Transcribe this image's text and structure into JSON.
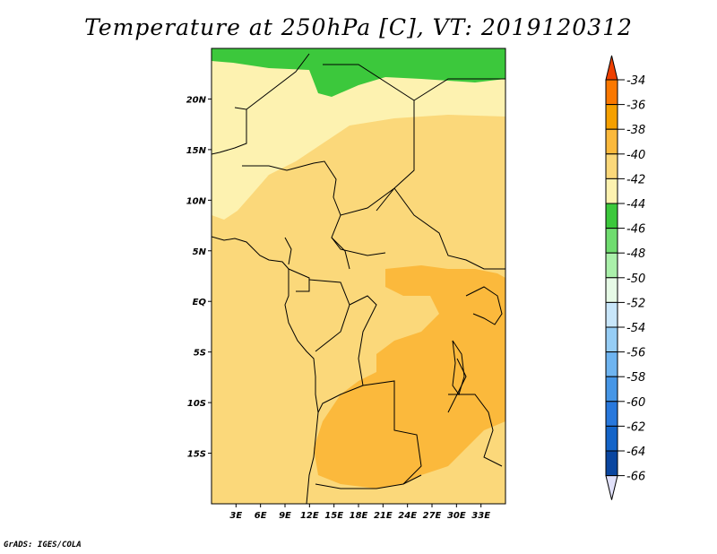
{
  "title": "Temperature at 250hPa [C], VT: 2019120312",
  "credit": "GrADS: IGES/COLA",
  "map": {
    "lon_range": [
      0,
      36
    ],
    "lat_range": [
      -20,
      25
    ],
    "lat_ticks": [
      {
        "lat": 20,
        "label": "20N"
      },
      {
        "lat": 15,
        "label": "15N"
      },
      {
        "lat": 10,
        "label": "10N"
      },
      {
        "lat": 5,
        "label": "5N"
      },
      {
        "lat": 0,
        "label": "EQ"
      },
      {
        "lat": -5,
        "label": "5S"
      },
      {
        "lat": -10,
        "label": "10S"
      },
      {
        "lat": -15,
        "label": "15S"
      }
    ],
    "lon_ticks": [
      {
        "lon": 3,
        "label": "3E"
      },
      {
        "lon": 6,
        "label": "6E"
      },
      {
        "lon": 9,
        "label": "9E"
      },
      {
        "lon": 12,
        "label": "12E"
      },
      {
        "lon": 15,
        "label": "15E"
      },
      {
        "lon": 18,
        "label": "18E"
      },
      {
        "lon": 21,
        "label": "21E"
      },
      {
        "lon": 24,
        "label": "24E"
      },
      {
        "lon": 27,
        "label": "27E"
      },
      {
        "lon": 30,
        "label": "30E"
      },
      {
        "lon": 33,
        "label": "33E"
      }
    ]
  },
  "colorbar": {
    "levels": [
      "-34",
      "-36",
      "-38",
      "-40",
      "-42",
      "-44",
      "-46",
      "-48",
      "-50",
      "-52",
      "-54",
      "-56",
      "-58",
      "-60",
      "-62",
      "-64",
      "-66"
    ],
    "colors": [
      "#ee4000",
      "#fa7800",
      "#f5a000",
      "#fbb93c",
      "#fbd87a",
      "#fdf2b0",
      "#3cc83c",
      "#6fdc6f",
      "#aaf0aa",
      "#e6fae6",
      "#c8e6fa",
      "#96cdf5",
      "#6eb4f0",
      "#4696e6",
      "#2878dc",
      "#1464c8",
      "#0a46a0",
      "#0a0a78"
    ],
    "top_arrow": "#ee4000",
    "bottom_arrow": "#e1e1fa"
  },
  "fills": {
    "base": "#fbd87a",
    "warm": "#fbb93c",
    "cool": "#fdf2b0",
    "green": "#3cc83c"
  }
}
